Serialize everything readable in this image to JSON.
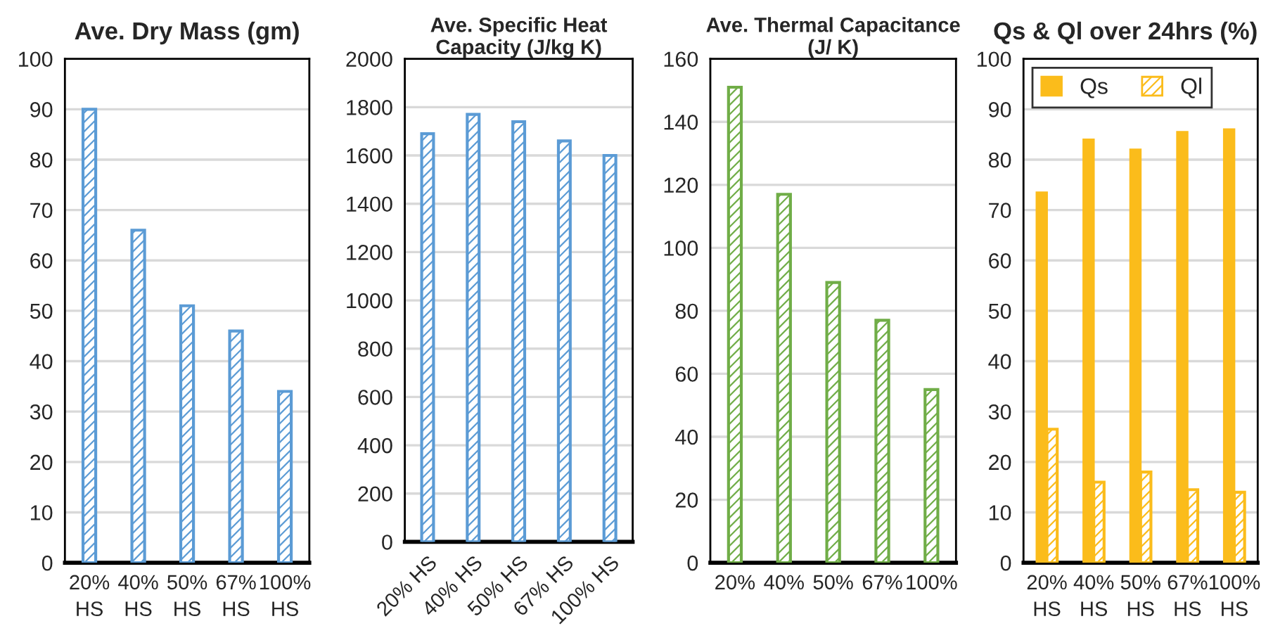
{
  "chart_data": [
    {
      "type": "bar",
      "title": "Ave. Dry Mass (gm)",
      "categories": [
        "20% HS",
        "40% HS",
        "50% HS",
        "67% HS",
        "100% HS"
      ],
      "series": [
        {
          "color": "#5b9bd5",
          "values": [
            90,
            66,
            51,
            46,
            34
          ]
        }
      ],
      "ylim": [
        0,
        100
      ],
      "yticks": [
        0,
        10,
        20,
        30,
        40,
        50,
        60,
        70,
        80,
        90,
        100
      ],
      "grid": "y"
    },
    {
      "type": "bar",
      "title": "Ave. Specific Heat Capacity (J/kg K)",
      "categories": [
        "20% HS",
        "40% HS",
        "50% HS",
        "67% HS",
        "100% HS"
      ],
      "series": [
        {
          "color": "#5b9bd5",
          "values": [
            1690,
            1770,
            1740,
            1660,
            1600
          ]
        }
      ],
      "ylim": [
        0,
        2000
      ],
      "yticks": [
        0,
        200,
        400,
        600,
        800,
        1000,
        1200,
        1400,
        1600,
        1800,
        2000
      ],
      "grid": "y"
    },
    {
      "type": "bar",
      "title": "Ave. Thermal Capacitance (J/ K)",
      "categories": [
        "20%",
        "40%",
        "50%",
        "67%",
        "100%"
      ],
      "series": [
        {
          "color": "#70ad47",
          "values": [
            151,
            117,
            89,
            77,
            55
          ]
        }
      ],
      "ylim": [
        0,
        160
      ],
      "yticks": [
        0,
        20,
        40,
        60,
        80,
        100,
        120,
        140,
        160
      ],
      "grid": "y"
    },
    {
      "type": "bar",
      "title": "Qs & Ql over 24hrs (%)",
      "categories": [
        "20% HS",
        "40% HS",
        "50% HS",
        "67% HS",
        "100% HS"
      ],
      "series": [
        {
          "name": "Qs",
          "color": "#fbbc1b",
          "values": [
            73.5,
            84,
            82,
            85.5,
            86
          ]
        },
        {
          "name": "Ql",
          "color": "#fbbc1b",
          "values": [
            26.5,
            16,
            18,
            14.5,
            14
          ]
        }
      ],
      "ylim": [
        0,
        100
      ],
      "yticks": [
        0,
        10,
        20,
        30,
        40,
        50,
        60,
        70,
        80,
        90,
        100
      ],
      "grid": "y",
      "legend": "top left"
    }
  ]
}
